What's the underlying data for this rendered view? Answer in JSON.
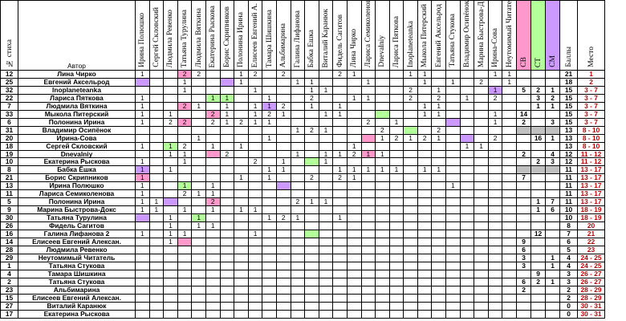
{
  "header": {
    "num_label": "№ стиха",
    "author_label": "Автор",
    "voters": [
      "Ирина Полюшко",
      "Сергей Скловский",
      "Людмила Ревенко",
      "Татьяна Турулина",
      "Людмила Вяткина",
      "Екатерина Рыскова",
      "Борис Скрипников",
      "Полонина Ирина",
      "Елисеев Евгений А.",
      "Тамара Шишкина",
      "Альбимарина",
      "Галина Лифанова",
      "Бабка Ешка",
      "Виталий Каранюк",
      "Фидель Сагитов",
      "Лина Чирко",
      "Лариса Семиколенова",
      "Dnevalniy",
      "Лариса Пяткова",
      "Inoplaneteanka",
      "Мыкола Питерский",
      "Евгений Аксельрод",
      "Татьяна Стукова",
      "Владимир Осипёнок",
      "Марина Быстрова-Д",
      "Ирина-Сова",
      "Неутомимый Читатель"
    ],
    "sv_label": "СВ",
    "st_label": "СТ",
    "sm_label": "СМ",
    "score_label": "Баллы",
    "place_label": "Место"
  },
  "colors": {
    "pink": "#ff99cc",
    "green": "#b3ff99",
    "purple": "#cc99ff",
    "gray": "#c0c0c0",
    "place": "#c00000"
  },
  "rows": [
    {
      "n": "12",
      "author": "Лина Чирко",
      "score": "21",
      "place": "1",
      "sv": "",
      "st": "",
      "sm": "",
      "cells": [
        {
          "c": 18,
          "v": "1"
        },
        {
          "c": 19,
          "v": "1"
        }
      ]
    },
    {
      "n": "25",
      "author": "Евгений Аксельрод",
      "score": "18",
      "place": "2",
      "sv": "",
      "st": "",
      "sm": "",
      "cells": [
        {
          "c": 0,
          "v": "",
          "k": "purple"
        }
      ]
    },
    {
      "n": "32",
      "author": "Inoplaneteanka",
      "score": "15",
      "place": "3 - 7",
      "sv": "5",
      "st": "2",
      "sm": "1",
      "cells": []
    },
    {
      "n": "22",
      "author": "Лариса Пяткова",
      "score": "15",
      "place": "3 - 7",
      "sv": "",
      "st": "3",
      "sm": "2",
      "cells": []
    },
    {
      "n": "7",
      "author": "Людмила Вяткина",
      "score": "15",
      "place": "3 - 7",
      "sv": "",
      "st": "1",
      "sm": "1",
      "cells": []
    },
    {
      "n": "33",
      "author": "Мыкола Питерский",
      "score": "15",
      "place": "3 - 7",
      "sv": "14",
      "st": "",
      "sm": "",
      "cells": []
    },
    {
      "n": "6",
      "author": "Полонина Ирина",
      "score": "15",
      "place": "3 - 7",
      "sv": "2",
      "st": "",
      "sm": "3",
      "cells": []
    },
    {
      "n": "31",
      "author": "Владимир Осипёнок",
      "score": "13",
      "place": "8 - 10",
      "sv": "",
      "st": "",
      "sm": "",
      "cells": []
    },
    {
      "n": "20",
      "author": "Ирина-Сова",
      "score": "13",
      "place": "8 - 10",
      "sv": "",
      "st": "16",
      "sm": "1",
      "cells": []
    },
    {
      "n": "18",
      "author": "Сергей Скловский",
      "score": "13",
      "place": "8 - 10",
      "sv": "",
      "st": "",
      "sm": "",
      "cells": []
    },
    {
      "n": "19",
      "author": "Dnevalniy",
      "score": "12",
      "place": "11 - 12",
      "sv": "2",
      "st": "",
      "sm": "4",
      "cells": []
    },
    {
      "n": "10",
      "author": "Екатерина Рыскова",
      "score": "12",
      "place": "11 - 12",
      "sv": "",
      "st": "2",
      "sm": "3",
      "cells": []
    },
    {
      "n": "8",
      "author": "Бабка Ёшка",
      "score": "11",
      "place": "13 - 17",
      "sv": "",
      "st": "",
      "sm": "",
      "cells": []
    },
    {
      "n": "21",
      "author": "Борис Скрипников",
      "score": "11",
      "place": "13 - 17",
      "sv": "7",
      "st": "",
      "sm": "",
      "cells": []
    },
    {
      "n": "13",
      "author": "Ирина Полюшко",
      "score": "11",
      "place": "13 - 17",
      "sv": "",
      "st": "",
      "sm": "",
      "cells": []
    },
    {
      "n": "11",
      "author": "Лариса Семиколенова",
      "score": "11",
      "place": "13 - 17",
      "sv": "",
      "st": "",
      "sm": "",
      "cells": []
    },
    {
      "n": "5",
      "author": "Полонина Ирина",
      "score": "11",
      "place": "13 - 17",
      "sv": "",
      "st": "1",
      "sm": "7",
      "cells": []
    },
    {
      "n": "9",
      "author": "Марина Быстрова-Докс",
      "score": "10",
      "place": "18 - 19",
      "sv": "",
      "st": "1",
      "sm": "6",
      "cells": []
    },
    {
      "n": "30",
      "author": "Татьяна Турулина",
      "score": "10",
      "place": "18 - 19",
      "sv": "",
      "st": "",
      "sm": "",
      "cells": []
    },
    {
      "n": "26",
      "author": "Фидель Сагитов",
      "score": "8",
      "place": "20",
      "sv": "",
      "st": "",
      "sm": "",
      "cells": []
    },
    {
      "n": "16",
      "author": "Галина Лифанова 2",
      "score": "7",
      "place": "21",
      "sv": "",
      "st": "12",
      "sm": "",
      "cells": []
    },
    {
      "n": "14",
      "author": "Елисеев Евгений Алексан.",
      "score": "6",
      "place": "22",
      "sv": "9",
      "st": "",
      "sm": "",
      "cells": []
    },
    {
      "n": "28",
      "author": "Людмила Ревенко",
      "score": "5",
      "place": "23",
      "sv": "6",
      "st": "",
      "sm": "",
      "cells": []
    },
    {
      "n": "29",
      "author": "Неутомимый Читатель",
      "score": "4",
      "place": "24 - 25",
      "sv": "3",
      "st": "",
      "sm": "1",
      "cells": []
    },
    {
      "n": "1",
      "author": "Татьяна Стукова",
      "score": "4",
      "place": "24 - 25",
      "sv": "3",
      "st": "",
      "sm": "1",
      "cells": []
    },
    {
      "n": "4",
      "author": "Тамара Шишкина",
      "score": "3",
      "place": "26 - 27",
      "sv": "",
      "st": "9",
      "sm": "",
      "cells": []
    },
    {
      "n": "2",
      "author": "Татьяна Стукова",
      "score": "3",
      "place": "26 - 27",
      "sv": "6",
      "st": "2",
      "sm": "1",
      "cells": []
    },
    {
      "n": "23",
      "author": "Альбимарина",
      "score": "2",
      "place": "28 - 29",
      "sv": "2",
      "st": "",
      "sm": "",
      "cells": []
    },
    {
      "n": "15",
      "author": "Елисеев Евгений Алексан.",
      "score": "2",
      "place": "28 - 29",
      "sv": "",
      "st": "",
      "sm": "",
      "cells": []
    },
    {
      "n": "27",
      "author": "Виталий Каранюк",
      "score": "0",
      "place": "30 - 31",
      "sv": "",
      "st": "",
      "sm": "",
      "cells": []
    },
    {
      "n": "17",
      "author": "Екатерина Рыскова",
      "score": "0",
      "place": "30 - 31",
      "sv": "",
      "st": "",
      "sm": "",
      "cells": []
    }
  ],
  "grid": [
    [
      "1",
      "",
      "",
      "2",
      "2",
      "",
      "",
      "1",
      "2",
      "",
      "2",
      "",
      "",
      "",
      "2",
      "1",
      "",
      "",
      "",
      "1",
      "1",
      "",
      "",
      "",
      "",
      "1",
      "1"
    ],
    [
      "p",
      "",
      "",
      "1",
      "",
      "",
      "",
      "1",
      "",
      "",
      "",
      "1",
      "1",
      "",
      "",
      "",
      "1",
      "",
      "",
      "",
      "1",
      "",
      "1",
      "",
      "2",
      "",
      "1"
    ],
    [
      "",
      "",
      "",
      "1",
      "",
      "",
      "",
      "",
      "1",
      "",
      "",
      "",
      "1",
      "1",
      "",
      "",
      "",
      "",
      "",
      "2",
      "",
      "1",
      "",
      "",
      "",
      "1",
      ""
    ],
    [
      "1",
      "",
      "",
      "",
      "",
      "1",
      "1",
      "",
      "",
      "1",
      "",
      "",
      "2",
      "",
      "",
      "1",
      "1",
      "",
      "",
      "2",
      "",
      "2",
      "",
      "1",
      "",
      "2",
      ""
    ],
    [
      "1",
      "",
      "",
      "2",
      "1",
      "",
      "1",
      "",
      "1",
      "1",
      "2",
      "",
      "1",
      "",
      "1",
      "",
      "",
      "",
      "",
      "",
      "1",
      "1",
      "",
      "",
      "",
      "",
      ""
    ],
    [
      "1",
      "",
      "1",
      "",
      "",
      "2",
      "1",
      "",
      "1",
      "2",
      "1",
      "",
      "",
      "1",
      "1",
      "",
      "",
      "",
      "",
      "",
      "1",
      "1",
      "",
      "",
      "",
      "1",
      ""
    ],
    [
      "1",
      "",
      "2",
      "2",
      "",
      "2",
      "1",
      "2",
      "1",
      "1",
      "",
      "",
      "",
      "",
      "",
      "",
      "2",
      "",
      "1",
      "",
      "",
      "",
      "",
      "",
      "",
      "1",
      ""
    ],
    [
      "",
      "",
      "",
      "",
      "",
      "",
      "",
      "",
      "",
      "",
      "",
      "1",
      "2",
      "1",
      "",
      "",
      "",
      "2",
      "",
      "",
      "",
      "2",
      "",
      "",
      "",
      "",
      ""
    ],
    [
      "",
      "",
      "",
      "",
      "1",
      "",
      "",
      "",
      "",
      "1",
      "",
      "",
      "",
      "",
      "",
      "",
      "",
      "1",
      "2",
      "1",
      "2",
      "1",
      "",
      "",
      "",
      "2",
      ""
    ],
    [
      "1",
      "",
      "1",
      "2",
      "",
      "1",
      "",
      "1",
      "",
      "",
      "",
      "",
      "",
      "",
      "",
      "1",
      "",
      "",
      "",
      "",
      "",
      "",
      "",
      "1",
      "1",
      "",
      ""
    ],
    [
      "",
      "",
      "1",
      "1",
      "",
      "",
      "2",
      "",
      "",
      "",
      "",
      "1",
      "",
      "1",
      "1",
      "2",
      "1",
      "1",
      "",
      "",
      "",
      "",
      "",
      "",
      "",
      "",
      ""
    ],
    [
      "1",
      "",
      "",
      "1",
      "",
      "",
      "",
      "",
      "2",
      "",
      "1",
      "",
      "",
      "1",
      "",
      "",
      "",
      "",
      "",
      "",
      "",
      "",
      "",
      "",
      "",
      "",
      ""
    ],
    [
      "1",
      "",
      "1",
      "",
      "",
      "",
      "",
      "",
      "",
      "1",
      "1",
      "",
      "",
      "",
      "1",
      "1",
      "1",
      "1",
      "1",
      "",
      "1",
      "1",
      "",
      "",
      "",
      "",
      ""
    ],
    [
      "1",
      "",
      "",
      "",
      "",
      "",
      "",
      "1",
      "",
      "1",
      "",
      "",
      "2",
      "",
      "2",
      "1",
      "",
      "",
      "",
      "",
      "",
      "",
      "",
      "",
      "",
      "",
      ""
    ],
    [
      "1",
      "",
      "",
      "1",
      "",
      "1",
      "",
      "",
      "",
      "",
      "",
      "",
      "",
      "",
      "",
      "",
      "",
      "",
      "",
      "",
      "",
      "",
      "1",
      "",
      "",
      "",
      ""
    ],
    [
      "1",
      "",
      "",
      "2",
      "1",
      "1",
      "",
      "",
      "",
      "",
      "",
      "",
      "",
      "",
      "",
      "",
      "",
      "",
      "",
      "",
      "",
      "",
      "",
      "",
      "",
      "",
      ""
    ],
    [
      "1",
      "1",
      "",
      "",
      "",
      "2",
      "",
      "",
      "",
      "",
      "",
      "2",
      "1",
      "1",
      "",
      "",
      "",
      "",
      "",
      "",
      "",
      "",
      "",
      "",
      "",
      "",
      ""
    ],
    [
      "1",
      "1",
      "",
      "1",
      "",
      "1",
      "",
      "1",
      "1",
      "",
      "",
      "",
      "",
      "",
      "",
      "",
      "",
      "",
      "",
      "",
      "",
      "",
      "",
      "",
      "",
      "",
      ""
    ],
    [
      "",
      "",
      "1",
      "",
      "1",
      "",
      "",
      "",
      "",
      "1",
      "2",
      "1",
      "",
      "",
      "1",
      "",
      "",
      "",
      "",
      "",
      "",
      "",
      "",
      "",
      "",
      "",
      ""
    ],
    [
      "",
      "",
      "1",
      "",
      "1",
      "1",
      "",
      "",
      "",
      "",
      "",
      "",
      "",
      "",
      "",
      "",
      "",
      "",
      "",
      "",
      "",
      "",
      "",
      "",
      "",
      "",
      ""
    ],
    [
      "1",
      "",
      "1",
      "1",
      "",
      "",
      "",
      "",
      "1",
      "",
      "",
      "",
      "",
      "",
      "",
      "",
      "",
      "",
      "",
      "",
      "",
      "",
      "",
      "",
      "",
      "",
      ""
    ],
    [
      "",
      "",
      "1",
      "",
      "",
      "",
      "",
      "",
      "",
      "",
      "",
      "",
      "",
      "",
      "",
      "",
      "",
      "",
      "",
      "",
      "",
      "",
      "",
      "",
      "",
      "",
      ""
    ],
    [
      "",
      "",
      "",
      "",
      "",
      "",
      "",
      "",
      "",
      "",
      "",
      "",
      "",
      "",
      "",
      "",
      "",
      "",
      "",
      "",
      "",
      "",
      "",
      "",
      "",
      "",
      ""
    ],
    [
      "",
      "",
      "",
      "",
      "",
      "",
      "",
      "",
      "",
      "",
      "",
      "",
      "",
      "",
      "",
      "",
      "",
      "",
      "",
      "",
      "",
      "",
      "",
      "",
      "",
      "",
      ""
    ],
    [
      "",
      "",
      "",
      "",
      "",
      "",
      "",
      "",
      "",
      "",
      "",
      "",
      "",
      "",
      "",
      "",
      "",
      "",
      "",
      "",
      "",
      "",
      "",
      "",
      "",
      "",
      ""
    ],
    [
      "",
      "",
      "",
      "",
      "",
      "",
      "",
      "",
      "",
      "",
      "",
      "",
      "",
      "",
      "",
      "",
      "",
      "",
      "",
      "",
      "",
      "",
      "",
      "",
      "",
      "",
      ""
    ],
    [
      "",
      "",
      "",
      "",
      "",
      "",
      "",
      "",
      "",
      "",
      "",
      "",
      "",
      "",
      "",
      "",
      "",
      "",
      "",
      "",
      "",
      "",
      "",
      "",
      "",
      "",
      ""
    ],
    [
      "",
      "",
      "",
      "",
      "",
      "",
      "",
      "",
      "",
      "",
      "",
      "",
      "",
      "",
      "",
      "",
      "",
      "",
      "",
      "",
      "",
      "",
      "",
      "",
      "",
      "",
      ""
    ],
    [
      "",
      "",
      "",
      "",
      "",
      "",
      "",
      "",
      "",
      "",
      "",
      "",
      "",
      "",
      "",
      "",
      "",
      "",
      "",
      "",
      "",
      "",
      "",
      "",
      "",
      "",
      ""
    ],
    [
      "",
      "",
      "",
      "",
      "",
      "",
      "",
      "",
      "",
      "",
      "",
      "",
      "",
      "",
      "",
      "",
      "",
      "",
      "",
      "",
      "",
      "",
      "",
      "",
      "",
      "",
      ""
    ],
    [
      "",
      "",
      "",
      "",
      "",
      "",
      "",
      "",
      "",
      "",
      "",
      "",
      "",
      "",
      "",
      "",
      "",
      "",
      "",
      "",
      "",
      "",
      "",
      "",
      "",
      "",
      ""
    ]
  ]
}
